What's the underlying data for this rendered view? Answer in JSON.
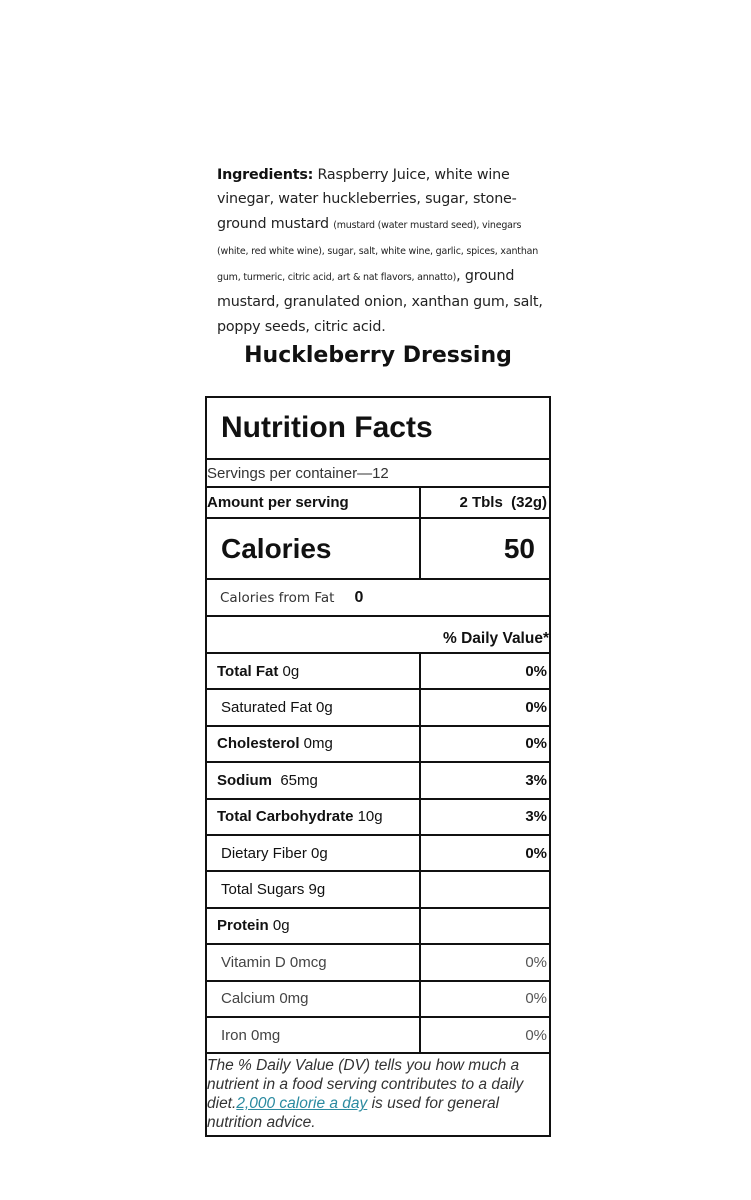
{
  "ingredients": {
    "heading": "Ingredients:",
    "part1": " Raspberry Juice, white wine vinegar, water huckleberries, sugar, stone-ground mustard ",
    "sub": "(mustard (water mustard seed), vinegars (white, red white wine), sugar, salt, white wine, garlic, spices, xanthan gum, turmeric, citric acid, art & nat flavors, annatto)",
    "part2": ", ground mustard, granulated  onion, xanthan gum, salt, poppy seeds, citric acid."
  },
  "product_name": "Huckleberry Dressing",
  "label": {
    "title": "Nutrition Facts",
    "servings": "Servings per container—12",
    "amount_label": "Amount per serving",
    "serving_size": "2 Tbls  (32g)",
    "calories_label": "Calories",
    "calories_value": "50",
    "cal_fat_label": "Calories from Fat",
    "cal_fat_value": "0",
    "dv_header": "% Daily Value*",
    "nutrients": [
      {
        "name": "Total Fat",
        "amount": " 0g",
        "dv": "0%",
        "bold": true
      },
      {
        "name": "",
        "amount": "Saturated Fat 0g",
        "dv": "0%",
        "bold": false
      },
      {
        "name": "Cholesterol",
        "amount": " 0mg",
        "dv": "0%",
        "bold": true
      },
      {
        "name": "Sodium",
        "amount": "  65mg",
        "dv": "3%",
        "bold": true
      },
      {
        "name": "Total Carbohydrate",
        "amount": " 10g",
        "dv": "3%",
        "bold": true
      },
      {
        "name": "",
        "amount": "Dietary Fiber 0g",
        "dv": "0%",
        "bold": false
      },
      {
        "name": "",
        "amount": "Total Sugars 9g",
        "dv": "",
        "bold": false
      },
      {
        "name": "Protein",
        "amount": " 0g",
        "dv": "",
        "bold": true
      },
      {
        "name": "",
        "amount": "Vitamin D 0mcg",
        "dv": "0%",
        "bold": false
      },
      {
        "name": "",
        "amount": "Calcium 0mg",
        "dv": "0%",
        "bold": false
      },
      {
        "name": "",
        "amount": "Iron 0mg",
        "dv": "0%",
        "bold": false
      }
    ],
    "footer_before": "The % Daily Value (DV) tells you how much a nutrient in a food serving contributes to a daily diet.",
    "footer_link": "2,000 calorie a day",
    "footer_after": " is used for general nutrition advice.",
    "link_color": "#2a8aa0"
  }
}
